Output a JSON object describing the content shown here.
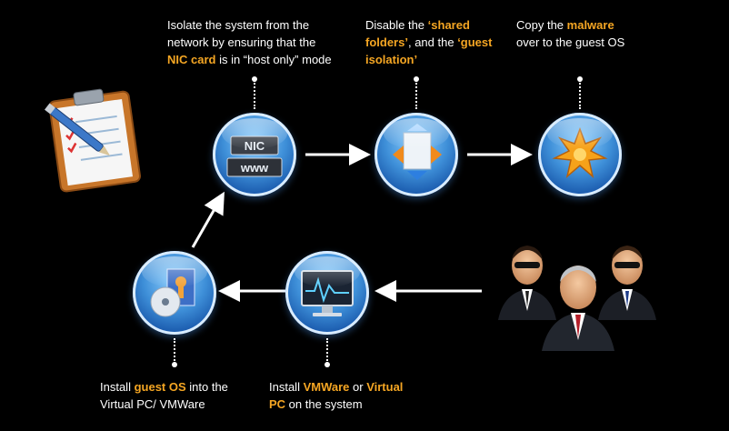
{
  "steps": [
    {
      "id": "isolate",
      "parts": [
        {
          "text": "Isolate the system from the",
          "hl": false,
          "br": true
        },
        {
          "text": "network by ensuring that the",
          "hl": false,
          "br": true
        },
        {
          "text": "NIC card",
          "hl": true,
          "br": false
        },
        {
          "text": " is in “host only” mode",
          "hl": false,
          "br": false
        }
      ],
      "icon": "nic-card-icon"
    },
    {
      "id": "disable",
      "parts": [
        {
          "text": "Disable the ",
          "hl": false,
          "br": false
        },
        {
          "text": "‘shared",
          "hl": true,
          "br": true
        },
        {
          "text": "folders’",
          "hl": true,
          "br": false
        },
        {
          "text": ", and the ",
          "hl": false,
          "br": false
        },
        {
          "text": "‘guest",
          "hl": true,
          "br": true
        },
        {
          "text": "isolation’",
          "hl": true,
          "br": false
        }
      ],
      "icon": "shared-folders-icon"
    },
    {
      "id": "copy",
      "parts": [
        {
          "text": "Copy the ",
          "hl": false,
          "br": false
        },
        {
          "text": "malware",
          "hl": true,
          "br": true
        },
        {
          "text": "over to the guest OS",
          "hl": false,
          "br": false
        }
      ],
      "icon": "malware-icon"
    },
    {
      "id": "install-guest",
      "parts": [
        {
          "text": "Install ",
          "hl": false,
          "br": false
        },
        {
          "text": "guest OS",
          "hl": true,
          "br": false
        },
        {
          "text": " into the",
          "hl": false,
          "br": true
        },
        {
          "text": "Virtual PC/ VMWare",
          "hl": false,
          "br": false
        }
      ],
      "icon": "guest-os-icon"
    },
    {
      "id": "install-vm",
      "parts": [
        {
          "text": "Install  ",
          "hl": false,
          "br": false
        },
        {
          "text": "VMWare",
          "hl": true,
          "br": false
        },
        {
          "text": " or ",
          "hl": false,
          "br": false
        },
        {
          "text": "Virtual",
          "hl": true,
          "br": true
        },
        {
          "text": "PC",
          "hl": true,
          "br": false
        },
        {
          "text": " on the system",
          "hl": false,
          "br": false
        }
      ],
      "icon": "monitor-icon"
    }
  ],
  "nic_label": "NIC",
  "www_label": "www",
  "colors": {
    "background": "#000000",
    "text": "#ffffff",
    "highlight": "#f5a623",
    "circle": "#3e8fd8"
  }
}
